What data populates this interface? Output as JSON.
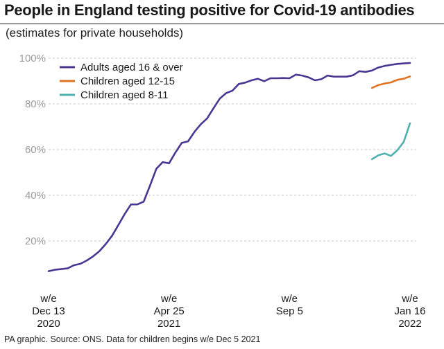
{
  "title": "People in England testing positive for Covid-19 antibodies",
  "subtitle": "(estimates for private households)",
  "footnote": "PA graphic. Source: ONS. Data for children begins w/e Dec 5 2021",
  "colors": {
    "adults": "#4b3592",
    "children_12_15": "#e07222",
    "children_8_11": "#4fb0ac",
    "grid": "#c8c8c8"
  },
  "chart_data": {
    "type": "line",
    "title": "People in England testing positive for Covid-19 antibodies",
    "subtitle": "(estimates for private households)",
    "xlabel": "",
    "ylabel": "",
    "ylim": [
      0,
      100
    ],
    "yticks": [
      {
        "value": 20,
        "label": "20%"
      },
      {
        "value": 40,
        "label": "40%"
      },
      {
        "value": 60,
        "label": "60%"
      },
      {
        "value": 80,
        "label": "80%"
      },
      {
        "value": 100,
        "label": "100%"
      }
    ],
    "xticks": [
      {
        "week": 0,
        "lines": [
          "w/e",
          "Dec 13",
          "2020"
        ]
      },
      {
        "week": 19,
        "lines": [
          "w/e",
          "Apr 25",
          "2021"
        ]
      },
      {
        "week": 38,
        "lines": [
          "w/e",
          "Sep 5",
          ""
        ]
      },
      {
        "week": 57,
        "lines": [
          "w/e",
          "Jan 16",
          "2022"
        ]
      }
    ],
    "xlim": [
      0,
      57
    ],
    "grid": true,
    "legend_position": "top-left",
    "series": [
      {
        "name": "Adults aged 16 & over",
        "color_key": "adults",
        "x": [
          0,
          1,
          2,
          3,
          4,
          5,
          6,
          7,
          8,
          9,
          10,
          11,
          12,
          13,
          14,
          15,
          16,
          17,
          18,
          19,
          20,
          21,
          22,
          23,
          24,
          25,
          26,
          27,
          28,
          29,
          30,
          31,
          32,
          33,
          34,
          35,
          36,
          37,
          38,
          39,
          40,
          41,
          42,
          43,
          44,
          45,
          46,
          47,
          48,
          49,
          50,
          51,
          52,
          53,
          54,
          55,
          56,
          57
        ],
        "y": [
          6.8,
          7.4,
          7.7,
          8.0,
          9.4,
          10.0,
          11.4,
          13.2,
          15.5,
          18.6,
          22.2,
          26.9,
          31.8,
          36.0,
          36.0,
          37.2,
          44.2,
          51.6,
          54.5,
          54.0,
          58.7,
          62.9,
          63.6,
          67.7,
          71.1,
          73.6,
          78.0,
          82.3,
          84.7,
          85.8,
          88.7,
          89.3,
          90.3,
          91.0,
          89.9,
          91.2,
          91.2,
          91.3,
          91.2,
          92.8,
          92.4,
          91.6,
          90.3,
          90.8,
          92.4,
          91.9,
          91.9,
          91.9,
          92.5,
          94.3,
          94.0,
          94.6,
          95.9,
          96.6,
          97.1,
          97.5,
          97.7,
          97.9
        ]
      },
      {
        "name": "Children aged 12-15",
        "color_key": "children_12_15",
        "x": [
          51,
          52,
          53,
          54,
          55,
          56,
          57
        ],
        "y": [
          87.0,
          88.2,
          88.9,
          89.4,
          90.5,
          91.0,
          92.0
        ]
      },
      {
        "name": "Children aged 8-11",
        "color_key": "children_8_11",
        "x": [
          51,
          52,
          53,
          54,
          55,
          56,
          57
        ],
        "y": [
          55.8,
          57.5,
          58.3,
          57.2,
          59.7,
          63.3,
          71.5
        ]
      }
    ]
  }
}
